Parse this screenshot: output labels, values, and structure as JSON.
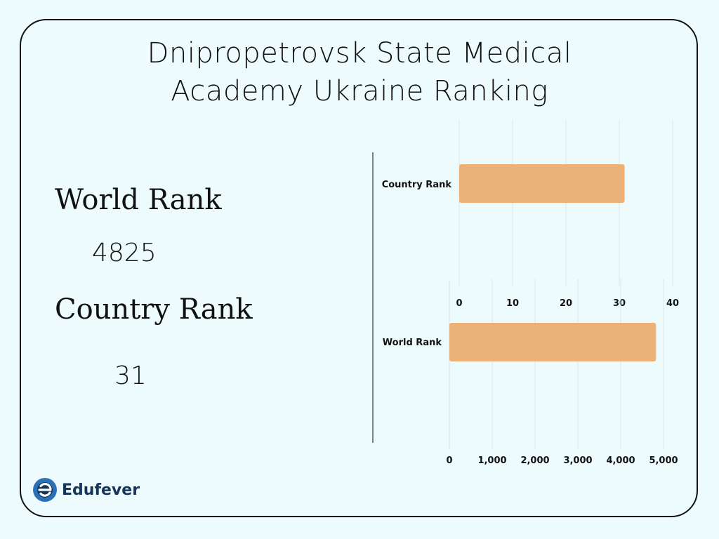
{
  "title_line1": "Dnipropetrovsk State Medical",
  "title_line2": "Academy Ukraine Ranking",
  "stats": {
    "world_label": "World Rank",
    "world_value": "4825",
    "country_label": "Country Rank",
    "country_value": "31"
  },
  "brand": {
    "name": "Edufever",
    "color": "#16355c",
    "accent": "#2a72b8"
  },
  "chart_data": [
    {
      "type": "bar",
      "orientation": "horizontal",
      "categories": [
        "Country Rank"
      ],
      "values": [
        31
      ],
      "xlim": [
        0,
        40
      ],
      "ticks": [
        0,
        10,
        20,
        30,
        40
      ],
      "tick_labels": [
        "0",
        "10",
        "20",
        "30",
        "40"
      ],
      "bar_color": "#ecb177",
      "grid": true
    },
    {
      "type": "bar",
      "orientation": "horizontal",
      "categories": [
        "World Rank"
      ],
      "values": [
        4825
      ],
      "xlim": [
        0,
        5000
      ],
      "ticks": [
        0,
        1000,
        2000,
        3000,
        4000,
        5000
      ],
      "tick_labels": [
        "0",
        "1,000",
        "2,000",
        "3,000",
        "4,000",
        "5,000"
      ],
      "bar_color": "#ecb177",
      "grid": true
    }
  ]
}
